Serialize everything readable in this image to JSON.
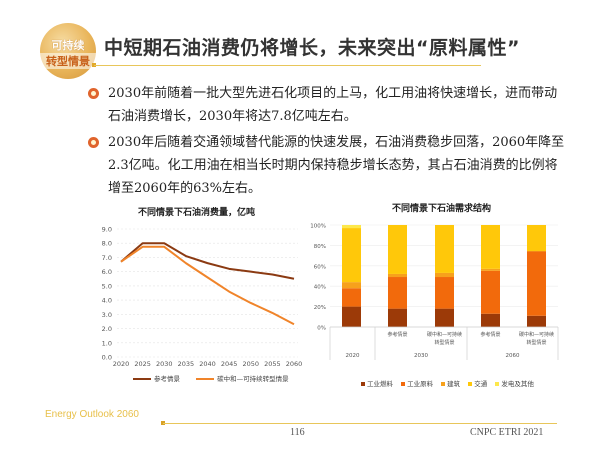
{
  "header": {
    "badge_line1": "可持续",
    "badge_line2": "转型情景",
    "title": "中短期石油消费仍将增长，未来突出“原料属性”"
  },
  "bullets": [
    {
      "text": "2030年前随着一批大型先进石化项目的上马，化工用油将快速增长，进而带动石油消费增长，2030年将达7.8亿吨左右。"
    },
    {
      "text": "2030年后随着交通领域替代能源的快速发展，石油消费稳步回落，2060年降至2.3亿吨。化工用油在相当长时期内保持稳步增长态势，其占石油消费的比例将增至2060年的63%左右。"
    }
  ],
  "chart_data": [
    {
      "type": "line",
      "title": "不同情景下石油消费量，亿吨",
      "xlabel": "",
      "ylabel": "",
      "x": [
        "2020",
        "2025",
        "2030",
        "2035",
        "2040",
        "2045",
        "2050",
        "2055",
        "2060"
      ],
      "ylim": [
        0,
        9
      ],
      "yticks": [
        "0.0",
        "1.0",
        "2.0",
        "3.0",
        "4.0",
        "5.0",
        "6.0",
        "7.0",
        "8.0",
        "9.0"
      ],
      "grid": true,
      "legend_position": "bottom",
      "series": [
        {
          "name": "参考情景",
          "color": "#8b3a12",
          "values": [
            6.7,
            8.0,
            8.0,
            7.1,
            6.6,
            6.2,
            6.0,
            5.8,
            5.5
          ]
        },
        {
          "name": "碳中和—可持续转型情景",
          "color": "#f0842a",
          "values": [
            6.7,
            7.75,
            7.75,
            6.6,
            5.6,
            4.6,
            3.8,
            3.1,
            2.3
          ]
        }
      ]
    },
    {
      "type": "bar",
      "stacked": true,
      "title": "不同情景下石油需求结构",
      "ylim": [
        0,
        100
      ],
      "yticks": [
        "0%",
        "20%",
        "40%",
        "60%",
        "80%",
        "100%"
      ],
      "legend_position": "bottom",
      "categories": [
        {
          "group": "2020",
          "label": ""
        },
        {
          "group": "2030",
          "label": "参考情景"
        },
        {
          "group": "2030",
          "label": "碳中和—可持续转型情景"
        },
        {
          "group": "2060",
          "label": "参考情景"
        },
        {
          "group": "2060",
          "label": "碳中和—可持续转型情景"
        }
      ],
      "groups": [
        "2020",
        "2030",
        "2060"
      ],
      "series": [
        {
          "name": "工业燃料",
          "color": "#9c3a08",
          "values": [
            20,
            18,
            18,
            13,
            11
          ]
        },
        {
          "name": "工业原料",
          "color": "#f26a0c",
          "values": [
            18,
            31,
            31,
            42,
            63
          ]
        },
        {
          "name": "建筑",
          "color": "#f7a11c",
          "values": [
            6,
            3,
            4,
            2,
            0.5
          ]
        },
        {
          "name": "交通",
          "color": "#ffc80a",
          "values": [
            53,
            48,
            47,
            43,
            25.5
          ]
        },
        {
          "name": "发电及其他",
          "color": "#fde84c",
          "values": [
            3,
            0,
            0,
            0,
            0
          ]
        }
      ]
    }
  ],
  "footer": {
    "left": "Energy Outlook 2060",
    "page": "116",
    "right": "CNPC ETRI 2021"
  }
}
